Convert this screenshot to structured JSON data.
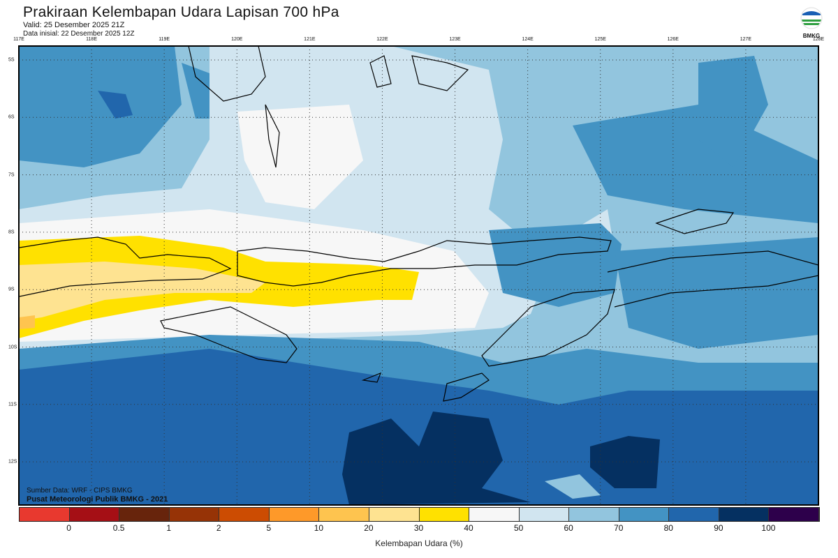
{
  "header": {
    "title": "Prakiraan Kelembapan Udara Lapisan 700 hPa",
    "valid": "Valid: 25 Desember 2025 21Z",
    "initial": "Data inisial: 22 Desember 2025 12Z"
  },
  "logo": {
    "text": "BMKG"
  },
  "axes": {
    "lon_labels": [
      "117E",
      "118E",
      "119E",
      "120E",
      "121E",
      "122E",
      "123E",
      "124E",
      "125E",
      "126E",
      "127E",
      "128E"
    ],
    "lat_labels": [
      "5S",
      "6S",
      "7S",
      "8S",
      "9S",
      "10S",
      "11S",
      "12S"
    ]
  },
  "footer": {
    "source": "Sumber Data: WRF - CIPS BMKG",
    "credit": "Pusat Meteorologi Publik BMKG - 2021"
  },
  "colorbar": {
    "colors": [
      "#e8392f",
      "#a50f15",
      "#67240c",
      "#963306",
      "#cc4c02",
      "#fe9929",
      "#fec44f",
      "#fee391",
      "#ffe100",
      "#f7f7f7",
      "#d1e5f0",
      "#92c5de",
      "#4393c3",
      "#2166ac",
      "#053061",
      "#2d004b"
    ],
    "ticks": [
      "0",
      "0.5",
      "1",
      "2",
      "5",
      "10",
      "20",
      "30",
      "40",
      "50",
      "60",
      "70",
      "80",
      "90",
      "100"
    ],
    "label": "Kelembapan Udara (%)"
  }
}
